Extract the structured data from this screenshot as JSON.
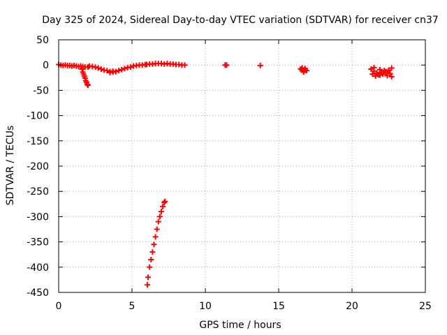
{
  "chart_data": {
    "type": "scatter",
    "title": "Day 325 of 2024, Sidereal Day-to-day VTEC variation (SDTVAR) for receiver cn37",
    "xlabel": "GPS time / hours",
    "ylabel": "SDTVAR / TECUs",
    "xlim": [
      0,
      25
    ],
    "ylim": [
      -450,
      50
    ],
    "xticks": [
      0,
      5,
      10,
      15,
      20,
      25
    ],
    "yticks": [
      50,
      0,
      -50,
      -100,
      -150,
      -200,
      -250,
      -300,
      -350,
      -400,
      -450
    ],
    "xtick_labels": [
      "0",
      "5",
      "10",
      "15",
      "20",
      "25"
    ],
    "ytick_labels": [
      "50",
      "0",
      "-50",
      "-100",
      "-150",
      "-200",
      "-250",
      "-300",
      "-350",
      "-400",
      "-450"
    ],
    "grid": true,
    "marker_color": "#ff0000",
    "series": [
      {
        "name": "seg-0-2h",
        "x": [
          0.0,
          0.15,
          0.3,
          0.45,
          0.6,
          0.75,
          0.9,
          1.05,
          1.2,
          1.35,
          1.5,
          1.65,
          1.8,
          2.0
        ],
        "y": [
          1,
          0,
          -1,
          0,
          -1,
          -1,
          -2,
          -1,
          -2,
          -3,
          -2,
          -3,
          -4,
          -4
        ]
      },
      {
        "name": "seg-2h-dip",
        "x": [
          1.6,
          1.65,
          1.7,
          1.75,
          1.8,
          1.85,
          1.9,
          1.95,
          2.0
        ],
        "y": [
          -8,
          -14,
          -18,
          -22,
          -26,
          -31,
          -34,
          -38,
          -40
        ]
      },
      {
        "name": "seg-2-3.5h",
        "x": [
          2.1,
          2.3,
          2.5,
          2.7,
          2.9,
          3.1,
          3.3,
          3.5,
          3.7
        ],
        "y": [
          -2,
          -3,
          -4,
          -6,
          -8,
          -10,
          -11,
          -13,
          -12
        ]
      },
      {
        "name": "seg-3.5-5h",
        "x": [
          3.5,
          3.7,
          3.9,
          4.1,
          4.3,
          4.5,
          4.7,
          4.9,
          5.1,
          5.3,
          5.5,
          5.7,
          5.9
        ],
        "y": [
          -15,
          -14,
          -13,
          -11,
          -9,
          -7,
          -5,
          -4,
          -2,
          -1,
          0,
          0,
          1
        ]
      },
      {
        "name": "seg-6-8.5h",
        "x": [
          6.0,
          6.2,
          6.4,
          6.6,
          6.8,
          7.0,
          7.2,
          7.4,
          7.6,
          7.8,
          8.0,
          8.2,
          8.4,
          8.6
        ],
        "y": [
          1,
          2,
          2,
          3,
          3,
          3,
          2,
          3,
          2,
          2,
          1,
          1,
          0,
          0
        ]
      },
      {
        "name": "steep-line",
        "x": [
          6.05,
          6.1,
          6.2,
          6.3,
          6.4,
          6.5,
          6.6,
          6.7,
          6.8,
          6.9,
          7.0,
          7.1,
          7.2,
          7.25
        ],
        "y": [
          -435,
          -420,
          -400,
          -385,
          -370,
          -355,
          -340,
          -325,
          -310,
          -300,
          -290,
          -280,
          -272,
          -270
        ]
      },
      {
        "name": "isolated-11.4h",
        "x": [
          11.35,
          11.45
        ],
        "y": [
          0,
          0
        ]
      },
      {
        "name": "isolated-13.7h",
        "x": [
          13.75
        ],
        "y": [
          -1
        ]
      },
      {
        "name": "cluster-16.7h",
        "x": [
          16.5,
          16.6,
          16.7,
          16.8,
          16.9,
          16.6,
          16.7,
          16.8
        ],
        "y": [
          -8,
          -10,
          -12,
          -9,
          -11,
          -6,
          -14,
          -7
        ]
      },
      {
        "name": "cluster-22h",
        "x": [
          21.3,
          21.5,
          21.7,
          21.9,
          22.1,
          22.3,
          22.5,
          22.7,
          21.4,
          21.6,
          21.8,
          22.0,
          22.2,
          22.4,
          22.6,
          21.5,
          21.9,
          22.3,
          22.7
        ],
        "y": [
          -8,
          -12,
          -16,
          -20,
          -18,
          -14,
          -10,
          -6,
          -18,
          -22,
          -19,
          -15,
          -11,
          -21,
          -17,
          -5,
          -9,
          -13,
          -23
        ]
      }
    ]
  }
}
